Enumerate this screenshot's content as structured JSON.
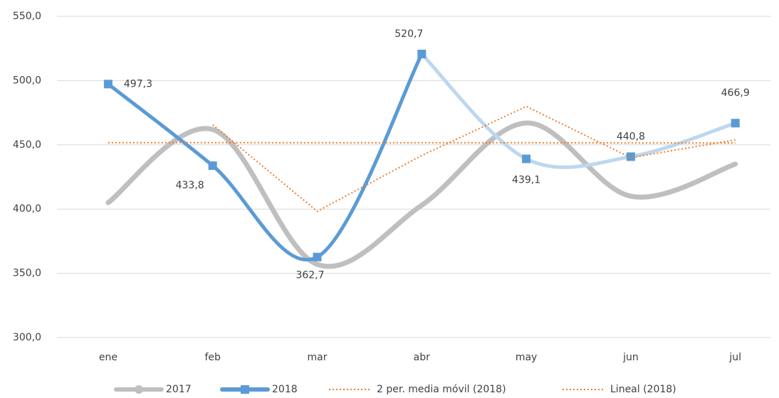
{
  "chart_data": {
    "type": "line",
    "categories": [
      "ene",
      "feb",
      "mar",
      "abr",
      "may",
      "jun",
      "jul"
    ],
    "series": [
      {
        "name": "2017",
        "color": "#bfbfbf",
        "smooth": true,
        "marker": "circle",
        "values": [
          405,
          462,
          357,
          403,
          467,
          410,
          435
        ]
      },
      {
        "name": "2018",
        "color": "#5b9bd5",
        "faded_color": "#bdd7ee",
        "faded_from": 3,
        "smooth": true,
        "marker": "square",
        "values": [
          497.3,
          433.8,
          362.7,
          520.7,
          439.1,
          440.8,
          466.9
        ],
        "value_labels": [
          "497,3",
          "433,8",
          "362,7",
          "520,7",
          "439,1",
          "440,8",
          "466,9"
        ]
      },
      {
        "name": "2 per. media móvil (2018)",
        "color": "#ed7d31",
        "dashed": true,
        "values": [
          null,
          465.6,
          398.3,
          441.7,
          479.9,
          440.0,
          453.9
        ]
      },
      {
        "name": "Lineal (2018)",
        "color": "#ed7d31",
        "dashed": true,
        "values": [
          451.7,
          451.7,
          451.6,
          451.6,
          451.6,
          451.5,
          451.5
        ]
      }
    ],
    "ylim": [
      300,
      550
    ],
    "yticks": [
      {
        "value": 300,
        "label": "300,0"
      },
      {
        "value": 350,
        "label": "350,0"
      },
      {
        "value": 400,
        "label": "400,0"
      },
      {
        "value": 450,
        "label": "450,0"
      },
      {
        "value": 500,
        "label": "500,0"
      },
      {
        "value": 550,
        "label": "550,0"
      }
    ],
    "grid": true,
    "legend": "bottom"
  }
}
